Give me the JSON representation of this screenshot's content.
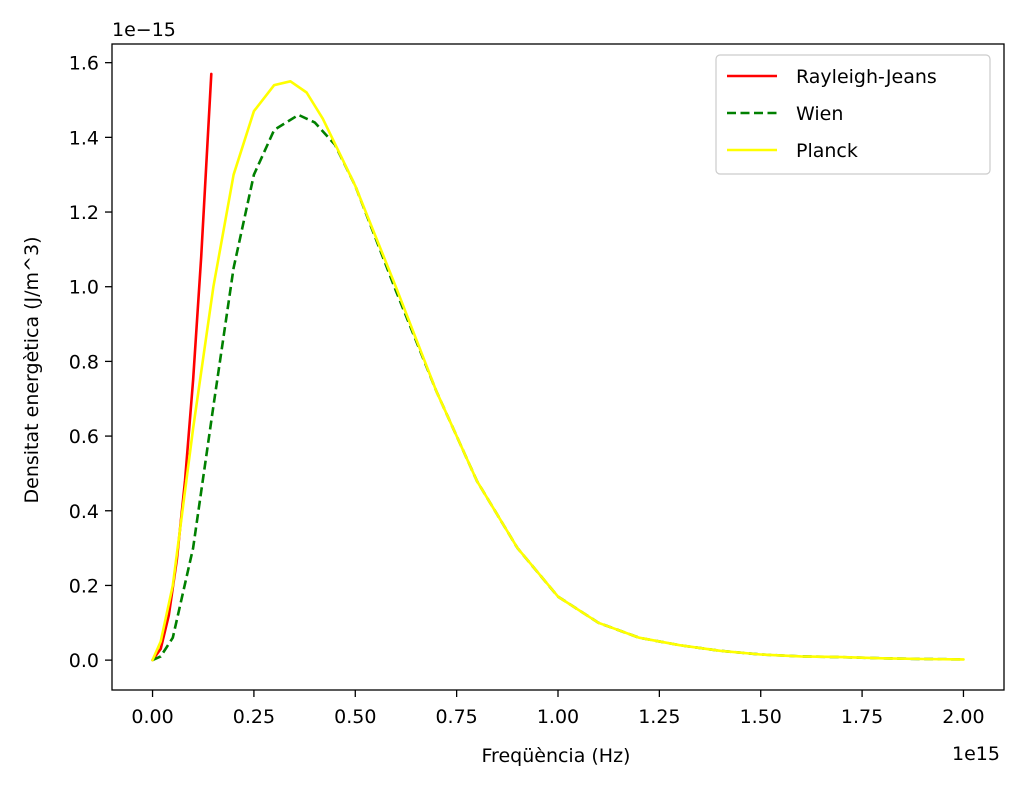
{
  "chart_data": {
    "type": "line",
    "xlabel": "Freqüència (Hz)",
    "ylabel": "Densitat energètica (J/m^3)",
    "x_offset_label": "1e15",
    "y_offset_label": "1e−15",
    "xlim": [
      -0.1,
      2.1
    ],
    "ylim": [
      -0.08,
      1.65
    ],
    "x_ticks": [
      0.0,
      0.25,
      0.5,
      0.75,
      1.0,
      1.25,
      1.5,
      1.75,
      2.0
    ],
    "x_tick_labels": [
      "0.00",
      "0.25",
      "0.50",
      "0.75",
      "1.00",
      "1.25",
      "1.50",
      "1.75",
      "2.00"
    ],
    "y_ticks": [
      0.0,
      0.2,
      0.4,
      0.6,
      0.8,
      1.0,
      1.2,
      1.4,
      1.6
    ],
    "y_tick_labels": [
      "0.0",
      "0.2",
      "0.4",
      "0.6",
      "0.8",
      "1.0",
      "1.2",
      "1.4",
      "1.6"
    ],
    "grid": false,
    "legend_position": "top-right",
    "series": [
      {
        "name": "Rayleigh-Jeans",
        "color": "#ff0000",
        "dash": "solid",
        "x": [
          0.0,
          0.02,
          0.04,
          0.06,
          0.08,
          0.1,
          0.12,
          0.145
        ],
        "y": [
          0.0,
          0.03,
          0.12,
          0.27,
          0.48,
          0.75,
          1.08,
          1.57
        ]
      },
      {
        "name": "Wien",
        "color": "#008000",
        "dash": "dashed",
        "x": [
          0.0,
          0.02,
          0.05,
          0.1,
          0.15,
          0.2,
          0.25,
          0.3,
          0.36,
          0.4,
          0.45,
          0.5,
          0.6,
          0.7,
          0.8,
          0.9,
          1.0,
          1.1,
          1.2,
          1.3,
          1.4,
          1.5,
          1.6,
          1.7,
          1.8,
          1.9,
          2.0
        ],
        "y": [
          0.0,
          0.01,
          0.06,
          0.3,
          0.68,
          1.05,
          1.3,
          1.42,
          1.46,
          1.44,
          1.38,
          1.27,
          0.99,
          0.72,
          0.48,
          0.3,
          0.17,
          0.1,
          0.06,
          0.04,
          0.025,
          0.015,
          0.01,
          0.008,
          0.005,
          0.003,
          0.002
        ]
      },
      {
        "name": "Planck",
        "color": "#ffff00",
        "dash": "solid",
        "x": [
          0.0,
          0.02,
          0.05,
          0.1,
          0.15,
          0.2,
          0.25,
          0.3,
          0.34,
          0.38,
          0.42,
          0.46,
          0.5,
          0.6,
          0.7,
          0.8,
          0.9,
          1.0,
          1.1,
          1.2,
          1.3,
          1.4,
          1.5,
          1.6,
          1.7,
          1.8,
          1.9,
          2.0
        ],
        "y": [
          0.0,
          0.05,
          0.2,
          0.62,
          1.0,
          1.3,
          1.47,
          1.54,
          1.55,
          1.52,
          1.45,
          1.36,
          1.27,
          1.0,
          0.72,
          0.48,
          0.3,
          0.17,
          0.1,
          0.06,
          0.04,
          0.025,
          0.015,
          0.01,
          0.008,
          0.005,
          0.003,
          0.002
        ]
      }
    ]
  }
}
